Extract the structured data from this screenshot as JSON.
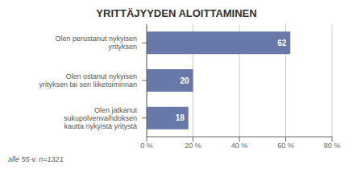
{
  "chart_data": {
    "type": "bar",
    "orientation": "horizontal",
    "title": "YRITTÄJYYDEN ALOITTAMINEN",
    "categories": [
      "Olen jatkanut\nsukupolvenvaihdoksen\nkautta nykyistä yritystä",
      "Olen ostanut nykyisen\nyrityksen tai sen liiketoiminnan",
      "Olen perustanut nykyisen\nyrityksen"
    ],
    "values": [
      18,
      20,
      62
    ],
    "color": "#6878a8",
    "xlim": [
      0,
      80
    ],
    "xticks": [
      {
        "value": 0,
        "label": "0 %"
      },
      {
        "value": 20,
        "label": "20 %"
      },
      {
        "value": 40,
        "label": "40 %"
      },
      {
        "value": 60,
        "label": "60 %"
      },
      {
        "value": 80,
        "label": "80 %"
      }
    ],
    "grid": true,
    "data_labels": true,
    "annotations": [
      "alle 55-v. n=1321"
    ]
  }
}
